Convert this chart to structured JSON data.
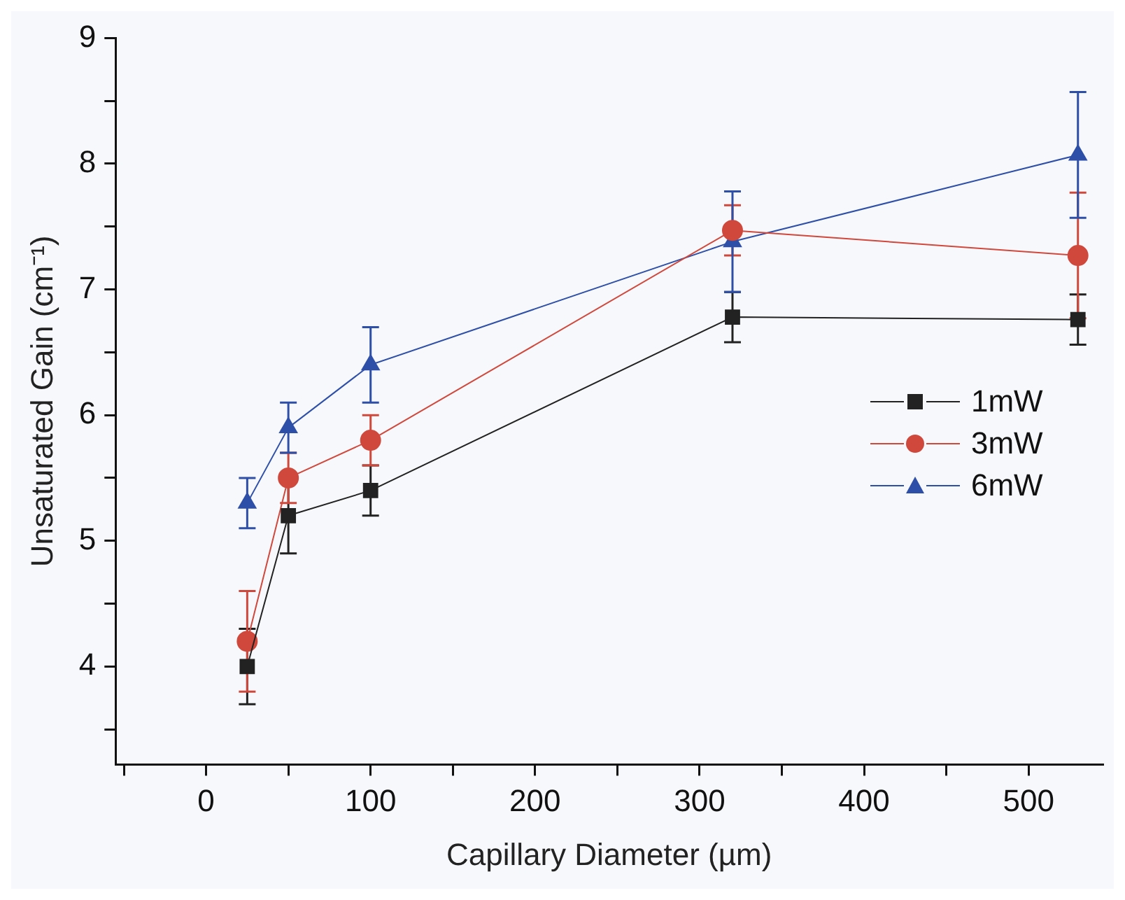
{
  "chart_data": {
    "type": "line",
    "xlabel": "Capillary Diameter (µm)",
    "ylabel": "Unsaturated Gain (cm⁻¹)",
    "x": [
      25,
      50,
      100,
      320,
      530
    ],
    "series": [
      {
        "name": "1mW",
        "color": "#222222",
        "marker": "square",
        "values": [
          4.0,
          5.2,
          5.4,
          6.78,
          6.76
        ],
        "errors": [
          0.3,
          0.3,
          0.2,
          0.2,
          0.2
        ]
      },
      {
        "name": "3mW",
        "color": "#d0483c",
        "marker": "circle",
        "values": [
          4.2,
          5.5,
          5.8,
          7.47,
          7.27
        ],
        "errors": [
          0.4,
          0.2,
          0.2,
          0.2,
          0.5
        ]
      },
      {
        "name": "6mW",
        "color": "#2e4fa8",
        "marker": "triangle",
        "values": [
          5.3,
          5.9,
          6.4,
          7.38,
          8.07
        ],
        "errors": [
          0.2,
          0.2,
          0.3,
          0.4,
          0.5
        ]
      }
    ],
    "xlim": [
      -55,
      545
    ],
    "xticks": [
      {
        "value": -50,
        "label": null
      },
      0,
      {
        "value": 50,
        "label": null
      },
      100,
      {
        "value": 150,
        "label": null
      },
      200,
      {
        "value": 250,
        "label": null
      },
      300,
      {
        "value": 350,
        "label": null
      },
      400,
      {
        "value": 450,
        "label": null
      },
      500
    ],
    "ylim": [
      3.22,
      9
    ],
    "yticks": [
      {
        "value": 3.5,
        "label": null
      },
      4,
      {
        "value": 4.5,
        "label": null
      },
      5,
      {
        "value": 5.5,
        "label": null
      },
      6,
      {
        "value": 6.5,
        "label": null
      },
      7,
      {
        "value": 7.5,
        "label": null
      },
      8,
      {
        "value": 8.5,
        "label": null
      },
      9
    ],
    "grid": false,
    "legend": "right",
    "line_style": "solid"
  }
}
